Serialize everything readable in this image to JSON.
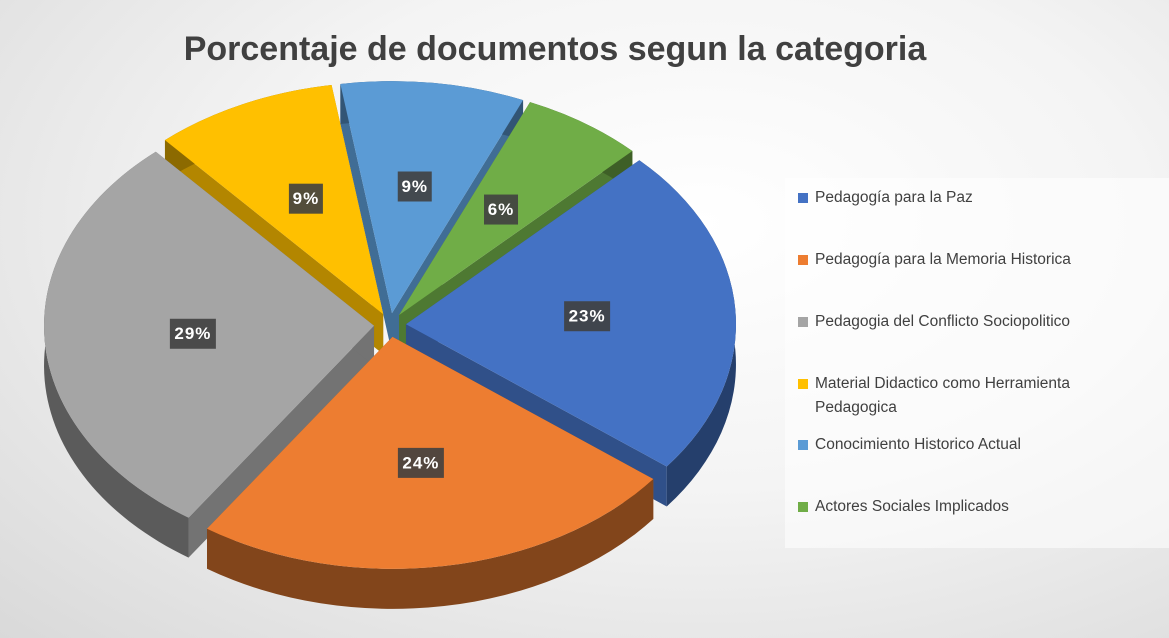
{
  "chart_data": {
    "type": "pie",
    "title": "Porcentaje de documentos segun la categoria",
    "categories": [
      "Pedagogía para la Paz",
      "Pedagogía para la Memoria Historica",
      "Pedagogia del Conflicto Sociopolitico",
      "Material Didactico como Herramienta Pedagogica",
      "Conocimiento Historico Actual",
      "Actores Sociales Implicados"
    ],
    "values": [
      23,
      24,
      29,
      9,
      9,
      6
    ],
    "value_labels": [
      "23%",
      "24%",
      "29%",
      "9%",
      "9%",
      "6%"
    ],
    "colors": [
      "#4472c4",
      "#ed7d31",
      "#a5a5a5",
      "#ffc000",
      "#5b9bd5",
      "#70ad47"
    ],
    "legend": "right"
  }
}
